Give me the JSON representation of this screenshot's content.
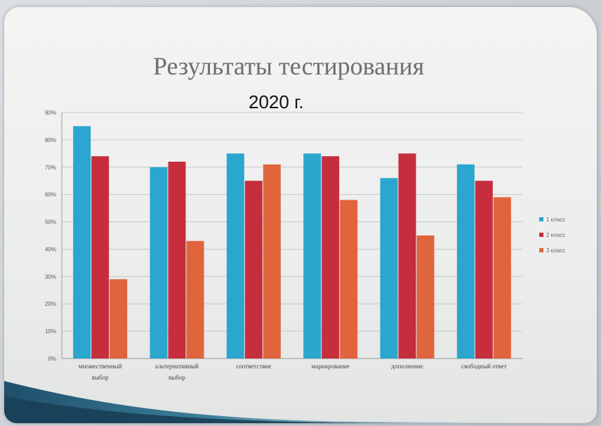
{
  "chart_data": {
    "type": "bar",
    "title": "Результаты тестирования",
    "subtitle": "2020 г.",
    "xlabel": "",
    "ylabel": "",
    "ylim": [
      0,
      90
    ],
    "y_ticks": [
      "0%",
      "10%",
      "20%",
      "30%",
      "40%",
      "50%",
      "60%",
      "70%",
      "80%",
      "90%"
    ],
    "grid": true,
    "legend_position": "right",
    "categories": [
      [
        "множественный",
        "выбор"
      ],
      [
        "альтернативный",
        "выбор"
      ],
      [
        "соответствие"
      ],
      [
        "маркирование"
      ],
      [
        "дополнение"
      ],
      [
        "свободный ответ"
      ]
    ],
    "series": [
      {
        "name": "1 класс",
        "color": "#2aa6cf",
        "values": [
          85,
          70,
          75,
          75,
          66,
          71
        ]
      },
      {
        "name": "2 класс",
        "color": "#c62e3e",
        "values": [
          74,
          72,
          65,
          74,
          75,
          65
        ]
      },
      {
        "name": "3 класс",
        "color": "#e0643c",
        "values": [
          29,
          43,
          71,
          58,
          45,
          59
        ]
      }
    ]
  }
}
